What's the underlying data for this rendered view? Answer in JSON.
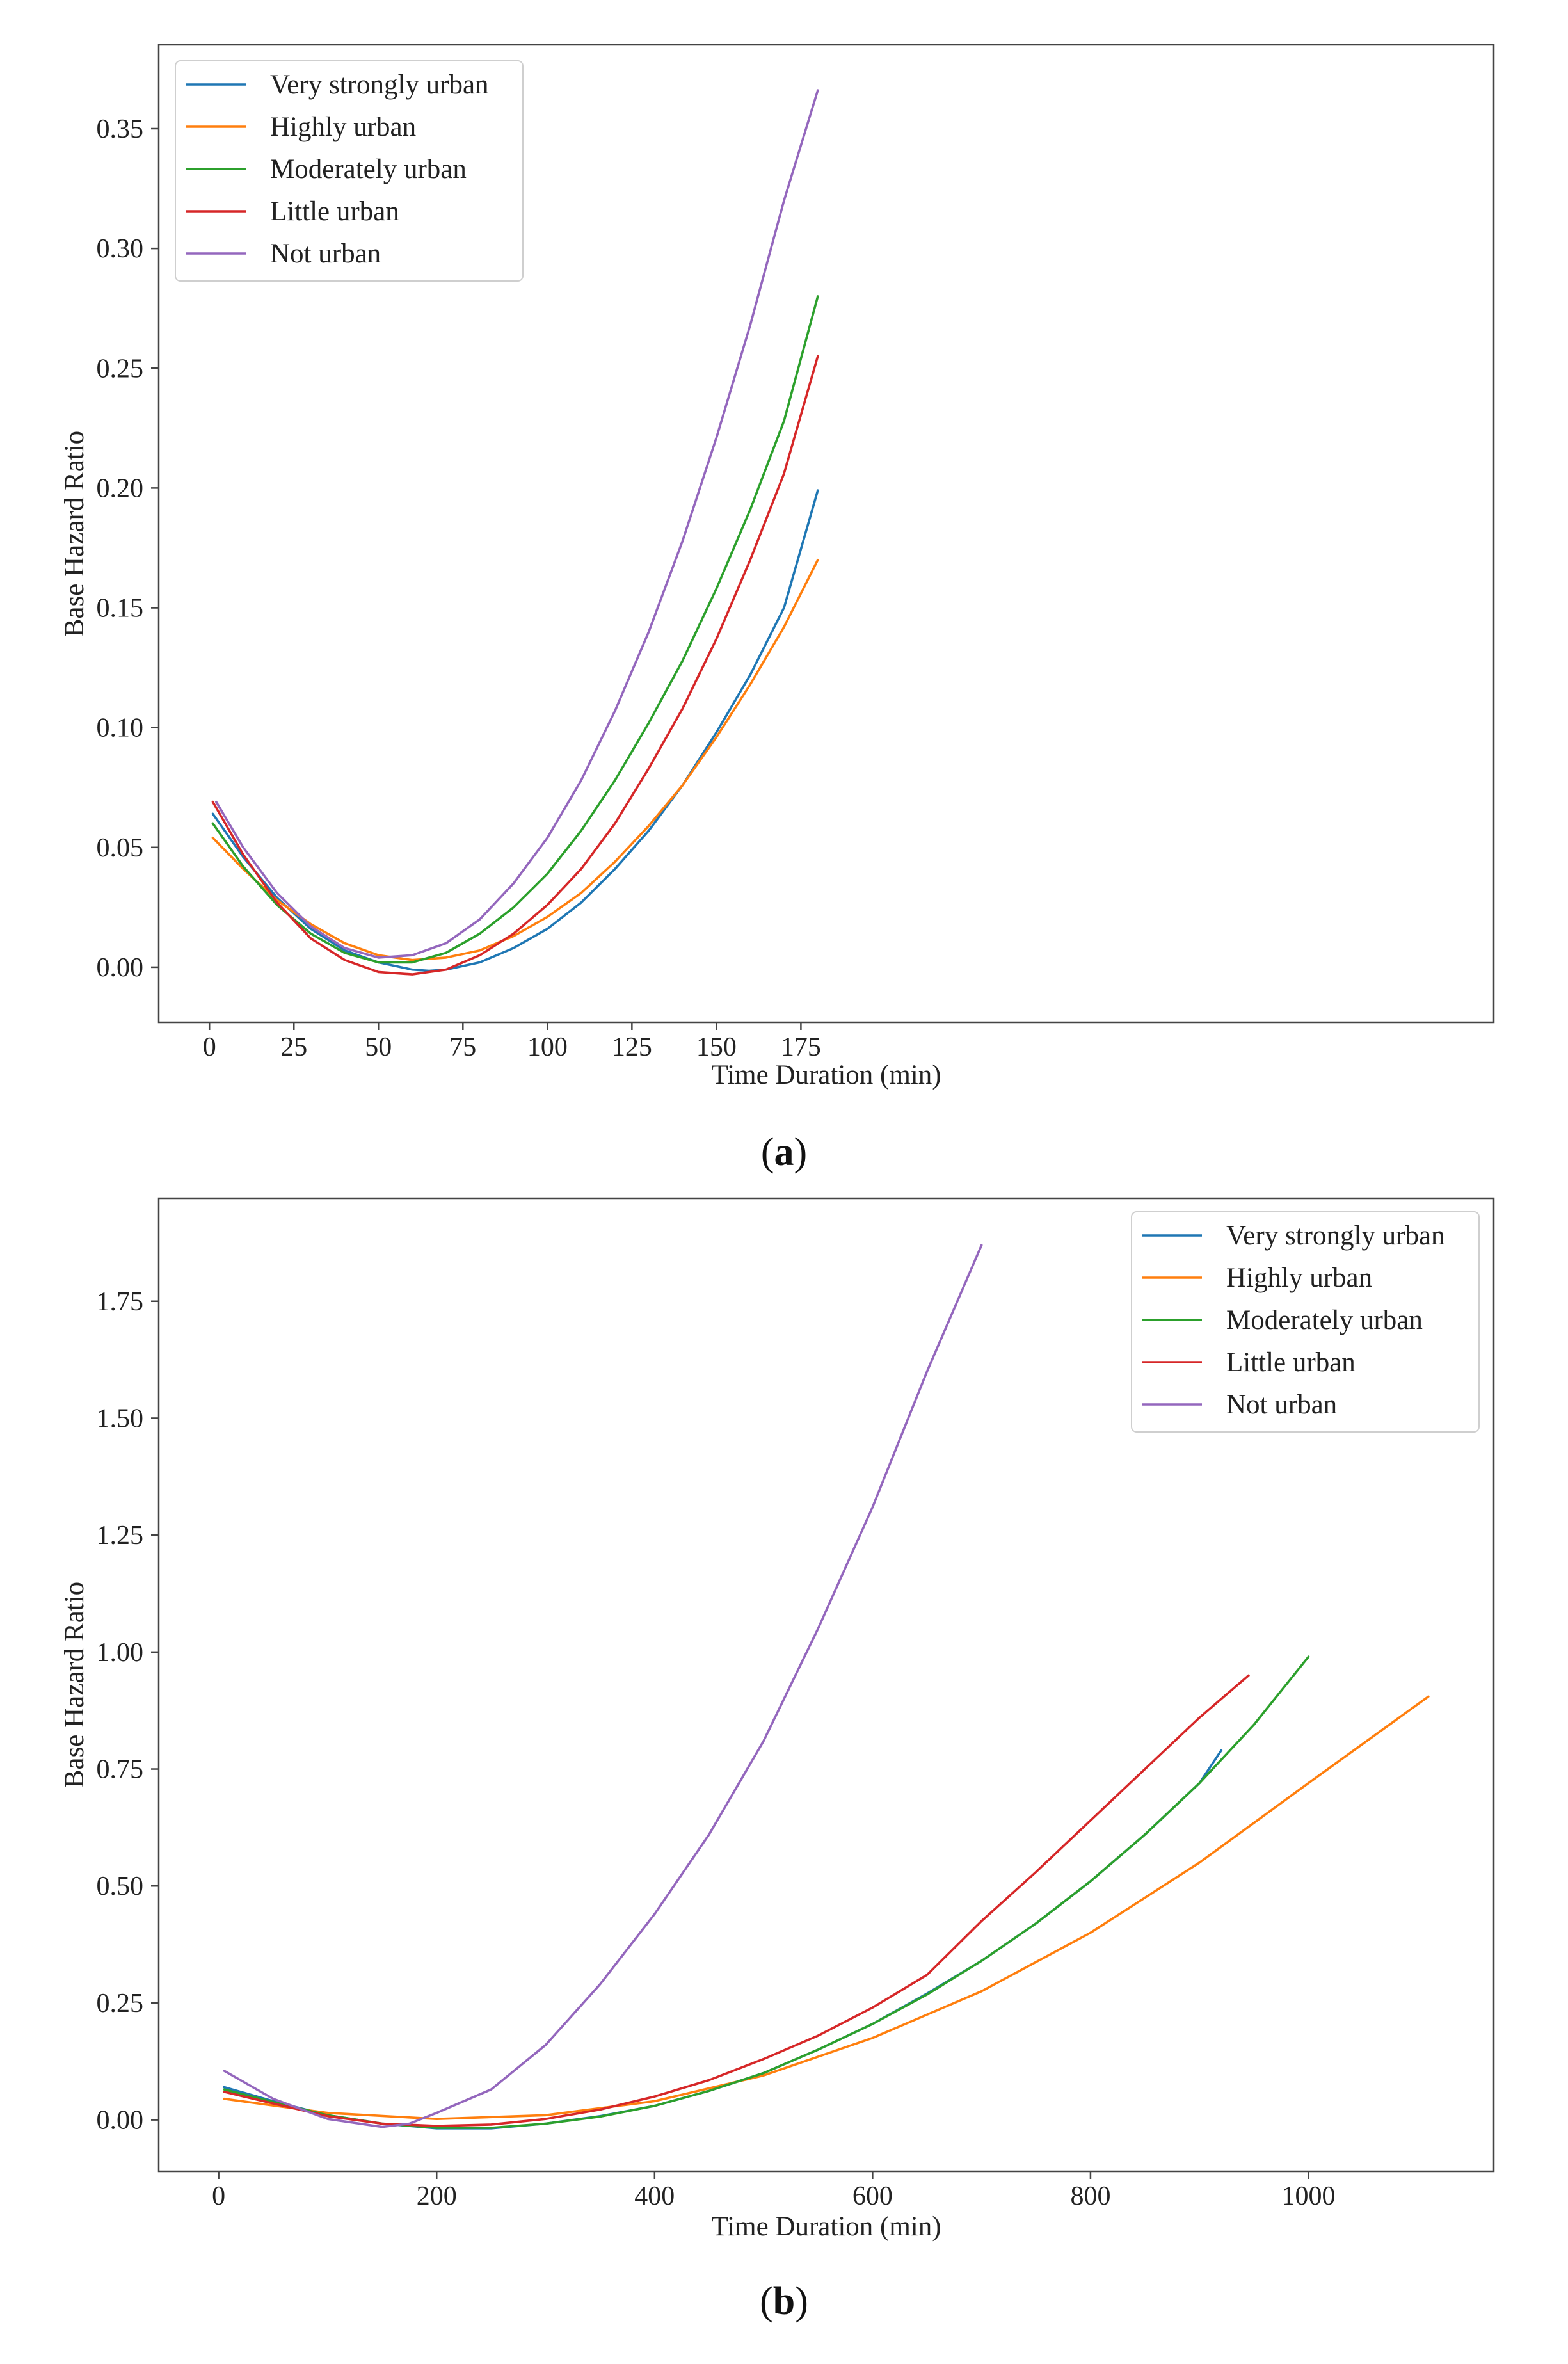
{
  "chart_data": [
    {
      "id": "a",
      "type": "line",
      "panel_label": "a",
      "title": "",
      "xlabel": "Time Duration (min)",
      "ylabel": "Base Hazard Ratio",
      "xlim": [
        -15,
        380
      ],
      "ylim": [
        -0.023,
        0.385
      ],
      "xlim_note": "data units",
      "xticks": [
        0,
        25,
        50,
        75,
        100,
        125,
        150,
        175
      ],
      "xtick_labels": [
        "0",
        "25",
        "50",
        "75",
        "100",
        "125",
        "150",
        "175"
      ],
      "yticks": [
        0.0,
        0.05,
        0.1,
        0.15,
        0.2,
        0.25,
        0.3,
        0.35
      ],
      "ytick_labels": [
        "0.00",
        "0.05",
        "0.10",
        "0.15",
        "0.20",
        "0.25",
        "0.30",
        "0.35"
      ],
      "grid": false,
      "legend_position": "top-left",
      "series": [
        {
          "name": "Very strongly urban",
          "color": "#1f77b4",
          "x": [
            1,
            10,
            20,
            30,
            40,
            50,
            60,
            65,
            70,
            80,
            90,
            100,
            110,
            120,
            130,
            140,
            150,
            160,
            170,
            180
          ],
          "y": [
            0.064,
            0.046,
            0.029,
            0.016,
            0.007,
            0.002,
            -0.001,
            -0.0015,
            -0.001,
            0.002,
            0.008,
            0.016,
            0.027,
            0.041,
            0.057,
            0.076,
            0.098,
            0.122,
            0.15,
            0.199
          ]
        },
        {
          "name": "Highly urban",
          "color": "#ff7f0e",
          "x": [
            1,
            10,
            20,
            30,
            40,
            50,
            60,
            70,
            80,
            90,
            100,
            110,
            120,
            130,
            140,
            150,
            160,
            170,
            180
          ],
          "y": [
            0.054,
            0.041,
            0.028,
            0.018,
            0.01,
            0.005,
            0.003,
            0.004,
            0.007,
            0.013,
            0.021,
            0.031,
            0.044,
            0.059,
            0.076,
            0.096,
            0.118,
            0.142,
            0.17
          ]
        },
        {
          "name": "Moderately urban",
          "color": "#2ca02c",
          "x": [
            1,
            10,
            20,
            30,
            40,
            50,
            60,
            70,
            80,
            90,
            100,
            110,
            120,
            130,
            140,
            150,
            160,
            170,
            180
          ],
          "y": [
            0.06,
            0.042,
            0.026,
            0.014,
            0.006,
            0.002,
            0.002,
            0.006,
            0.014,
            0.025,
            0.039,
            0.057,
            0.078,
            0.102,
            0.128,
            0.158,
            0.191,
            0.228,
            0.28
          ]
        },
        {
          "name": "Little urban",
          "color": "#d62728",
          "x": [
            1,
            10,
            20,
            30,
            40,
            50,
            60,
            70,
            80,
            90,
            100,
            110,
            120,
            130,
            140,
            150,
            160,
            170,
            180
          ],
          "y": [
            0.069,
            0.047,
            0.027,
            0.012,
            0.003,
            -0.002,
            -0.003,
            -0.001,
            0.005,
            0.014,
            0.026,
            0.041,
            0.06,
            0.083,
            0.108,
            0.137,
            0.17,
            0.206,
            0.255
          ]
        },
        {
          "name": "Not urban",
          "color": "#9467bd",
          "x": [
            2,
            10,
            20,
            30,
            40,
            50,
            60,
            70,
            80,
            90,
            100,
            110,
            120,
            130,
            140,
            150,
            160,
            170,
            180
          ],
          "y": [
            0.069,
            0.05,
            0.031,
            0.017,
            0.008,
            0.004,
            0.005,
            0.01,
            0.02,
            0.035,
            0.054,
            0.078,
            0.107,
            0.14,
            0.178,
            0.221,
            0.268,
            0.32,
            0.366
          ]
        }
      ]
    },
    {
      "id": "b",
      "type": "line",
      "panel_label": "b",
      "title": "",
      "xlabel": "Time Duration (min)",
      "ylabel": "Base Hazard Ratio",
      "xlim": [
        -55,
        1170
      ],
      "ylim": [
        -0.11,
        1.97
      ],
      "xticks": [
        0,
        200,
        400,
        600,
        800,
        1000
      ],
      "xtick_labels": [
        "0",
        "200",
        "400",
        "600",
        "800",
        "1000"
      ],
      "yticks": [
        0.0,
        0.25,
        0.5,
        0.75,
        1.0,
        1.25,
        1.5,
        1.75
      ],
      "ytick_labels": [
        "0.00",
        "0.25",
        "0.50",
        "0.75",
        "1.00",
        "1.25",
        "1.50",
        "1.75"
      ],
      "grid": false,
      "legend_position": "top-right",
      "series": [
        {
          "name": "Very strongly urban",
          "color": "#1f77b4",
          "x": [
            5,
            50,
            100,
            150,
            200,
            250,
            300,
            350,
            400,
            450,
            500,
            550,
            600,
            650,
            700,
            750,
            800,
            850,
            900,
            920
          ],
          "y": [
            0.07,
            0.04,
            0.01,
            -0.008,
            -0.018,
            -0.018,
            -0.008,
            0.008,
            0.03,
            0.062,
            0.1,
            0.15,
            0.205,
            0.27,
            0.34,
            0.42,
            0.51,
            0.61,
            0.72,
            0.79
          ]
        },
        {
          "name": "Highly urban",
          "color": "#ff7f0e",
          "x": [
            5,
            100,
            200,
            300,
            400,
            500,
            600,
            700,
            800,
            900,
            1000,
            1110
          ],
          "y": [
            0.045,
            0.015,
            0.002,
            0.01,
            0.04,
            0.095,
            0.175,
            0.275,
            0.4,
            0.55,
            0.72,
            0.905
          ]
        },
        {
          "name": "Moderately urban",
          "color": "#2ca02c",
          "x": [
            5,
            50,
            100,
            150,
            200,
            250,
            300,
            350,
            400,
            450,
            500,
            550,
            600,
            650,
            700,
            750,
            800,
            850,
            900,
            950,
            1000
          ],
          "y": [
            0.065,
            0.038,
            0.01,
            -0.008,
            -0.017,
            -0.017,
            -0.008,
            0.007,
            0.03,
            0.062,
            0.1,
            0.15,
            0.205,
            0.268,
            0.34,
            0.42,
            0.51,
            0.61,
            0.72,
            0.845,
            0.99
          ]
        },
        {
          "name": "Little urban",
          "color": "#d62728",
          "x": [
            5,
            50,
            100,
            150,
            200,
            250,
            300,
            350,
            400,
            450,
            500,
            550,
            600,
            650,
            700,
            750,
            800,
            850,
            900,
            945
          ],
          "y": [
            0.06,
            0.035,
            0.008,
            -0.008,
            -0.013,
            -0.01,
            0.002,
            0.022,
            0.05,
            0.085,
            0.13,
            0.18,
            0.24,
            0.31,
            0.425,
            0.53,
            0.64,
            0.75,
            0.86,
            0.95
          ]
        },
        {
          "name": "Not urban",
          "color": "#9467bd",
          "x": [
            5,
            50,
            100,
            150,
            175,
            200,
            250,
            300,
            350,
            400,
            450,
            500,
            550,
            600,
            650,
            700
          ],
          "y": [
            0.105,
            0.045,
            0.002,
            -0.015,
            -0.008,
            0.015,
            0.065,
            0.16,
            0.29,
            0.44,
            0.61,
            0.81,
            1.05,
            1.31,
            1.6,
            1.87
          ]
        }
      ]
    }
  ]
}
